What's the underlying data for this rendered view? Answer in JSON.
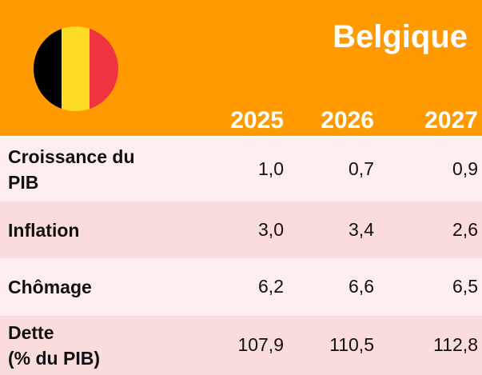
{
  "header": {
    "title": "Belgique",
    "years": [
      "2025",
      "2026",
      "2027"
    ]
  },
  "table": {
    "rows": [
      {
        "label": [
          "Croissance du",
          "PIB"
        ],
        "values": [
          "1,0",
          "0,7",
          "0,9"
        ]
      },
      {
        "label": [
          "Inflation"
        ],
        "values": [
          "3,0",
          "3,4",
          "2,6"
        ]
      },
      {
        "label": [
          "Chômage"
        ],
        "values": [
          "6,2",
          "6,6",
          "6,5"
        ]
      },
      {
        "label": [
          "Dette",
          "(% du PIB)"
        ],
        "values": [
          "107,9",
          "110,5",
          "112,8"
        ]
      }
    ]
  }
}
